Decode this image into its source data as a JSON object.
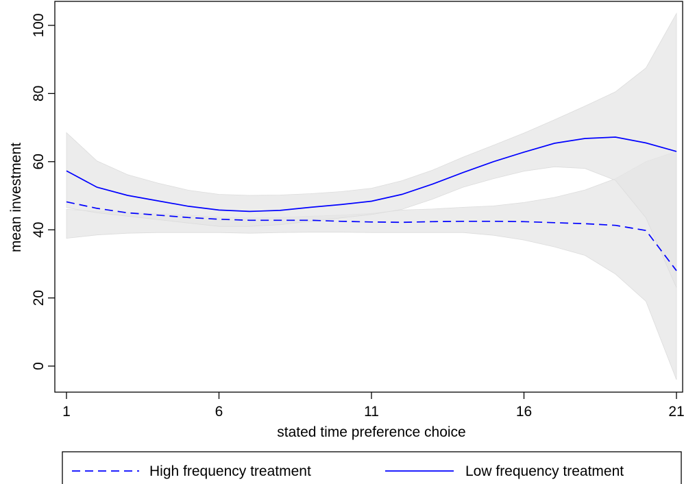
{
  "chart_data": {
    "type": "line",
    "xlabel": "stated time preference choice",
    "ylabel": "mean investment",
    "xlim": [
      1,
      21
    ],
    "ylim": [
      -7,
      106
    ],
    "xticks": [
      1,
      6,
      11,
      16,
      21
    ],
    "yticks": [
      0,
      20,
      40,
      60,
      80,
      100
    ],
    "grid": false,
    "legend_position": "bottom",
    "band_color": "#e6e6e6",
    "line_color": "#0000ff",
    "x": [
      1,
      2,
      3,
      4,
      5,
      6,
      7,
      8,
      9,
      10,
      11,
      12,
      13,
      14,
      15,
      16,
      17,
      18,
      19,
      20,
      21
    ],
    "series": [
      {
        "name": "High frequency treatment",
        "style": "dashed",
        "values": [
          48.2,
          46.3,
          45.0,
          44.3,
          43.6,
          43.1,
          42.8,
          42.8,
          42.8,
          42.5,
          42.3,
          42.2,
          42.4,
          42.5,
          42.5,
          42.4,
          42.1,
          41.8,
          41.3,
          39.8,
          28.0
        ],
        "ci_lower": [
          37.5,
          38.5,
          39.0,
          39.2,
          39.2,
          39.2,
          39.0,
          39.2,
          39.3,
          39.3,
          39.2,
          39.2,
          39.2,
          39.2,
          38.4,
          37.0,
          35.0,
          32.5,
          27.0,
          19.0,
          -4.0
        ],
        "ci_upper": [
          46.0,
          45.5,
          45.0,
          44.8,
          44.3,
          43.7,
          43.5,
          43.6,
          44.0,
          44.3,
          44.8,
          45.8,
          46.1,
          46.6,
          47.0,
          48.0,
          49.5,
          51.7,
          55.0,
          60.0,
          63.0
        ]
      },
      {
        "name": "Low frequency treatment",
        "style": "solid",
        "values": [
          57.3,
          52.5,
          50.1,
          48.5,
          46.9,
          45.8,
          45.4,
          45.7,
          46.6,
          47.4,
          48.4,
          50.4,
          53.4,
          56.8,
          60.0,
          62.8,
          65.4,
          66.8,
          67.2,
          65.5,
          63.0
        ],
        "ci_lower": [
          46.5,
          45.0,
          44.0,
          43.0,
          42.0,
          41.0,
          41.0,
          41.5,
          42.5,
          43.5,
          44.5,
          46.0,
          49.0,
          52.5,
          55.0,
          57.2,
          58.5,
          58.0,
          54.5,
          43.5,
          23.0
        ],
        "ci_upper": [
          68.5,
          60.2,
          56.2,
          53.7,
          51.6,
          50.4,
          50.1,
          50.2,
          50.6,
          51.2,
          52.2,
          54.4,
          57.5,
          61.3,
          64.8,
          68.4,
          72.3,
          76.3,
          80.5,
          87.5,
          103.5
        ]
      }
    ]
  }
}
